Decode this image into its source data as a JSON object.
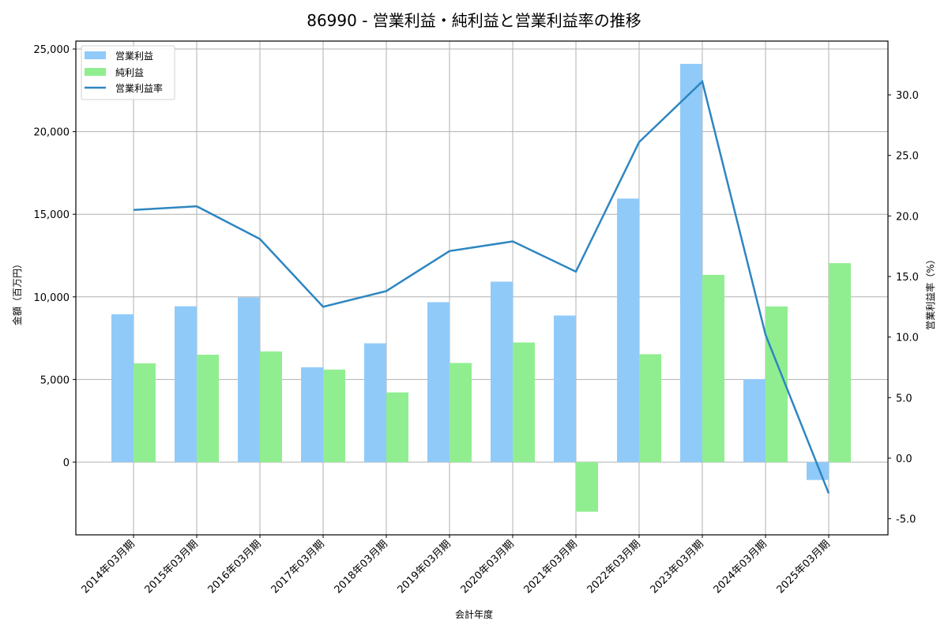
{
  "chart_data": {
    "type": "bar",
    "title": "86990 - 営業利益・純利益と営業利益率の推移",
    "xlabel": "会計年度",
    "ylabel": "金額（百万円）",
    "ylabel_right": "営業利益率（%）",
    "categories": [
      "2014年03月期",
      "2015年03月期",
      "2016年03月期",
      "2017年03月期",
      "2018年03月期",
      "2019年03月期",
      "2020年03月期",
      "2021年03月期",
      "2022年03月期",
      "2023年03月期",
      "2024年03月期",
      "2025年03月期"
    ],
    "series": [
      {
        "name": "営業利益",
        "type": "bar",
        "axis": "left",
        "color": "#90caf9",
        "values": [
          8950,
          9430,
          9970,
          5740,
          7190,
          9680,
          10920,
          8870,
          15950,
          24100,
          5020,
          -1080
        ]
      },
      {
        "name": "純利益",
        "type": "bar",
        "axis": "left",
        "color": "#90ee90",
        "values": [
          5980,
          6500,
          6700,
          5600,
          4220,
          6000,
          7240,
          -3000,
          6530,
          11330,
          9420,
          12040
        ]
      },
      {
        "name": "営業利益率",
        "type": "line",
        "axis": "right",
        "color": "#2e86c1",
        "values": [
          20.5,
          20.8,
          18.1,
          12.5,
          13.8,
          17.1,
          17.9,
          15.4,
          26.1,
          31.1,
          10.2,
          -2.9
        ]
      }
    ],
    "ylim": [
      -4400,
      25480
    ],
    "ylim_right": [
      -6.33,
      34.44
    ],
    "yticks": [
      0,
      5000,
      10000,
      15000,
      20000,
      25000
    ],
    "ytick_labels": [
      "0",
      "5,000",
      "10,000",
      "15,000",
      "20,000",
      "25,000"
    ],
    "yticks_right": [
      -5,
      0,
      5,
      10,
      15,
      20,
      25,
      30
    ],
    "ytick_labels_right": [
      "-5.0",
      "0.0",
      "5.0",
      "10.0",
      "15.0",
      "20.0",
      "25.0",
      "30.0"
    ],
    "grid": true,
    "legend_position": "upper left"
  }
}
